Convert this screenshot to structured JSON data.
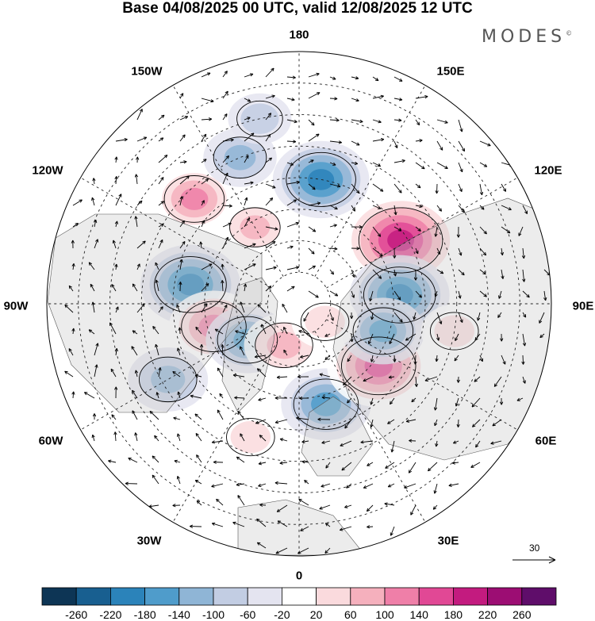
{
  "title": "Base 04/08/2025 00 UTC, valid 12/08/2025 12 UTC",
  "brand": "MODES",
  "brand_mark": "©",
  "longitude_labels": {
    "lon_180": "180",
    "lon_150e": "150E",
    "lon_120e": "120E",
    "lon_90e": "90E",
    "lon_60e": "60E",
    "lon_30e": "30E",
    "lon_0": "0",
    "lon_30w": "30W",
    "lon_60w": "60W",
    "lon_90w": "90W",
    "lon_120w": "120W",
    "lon_150w": "150W"
  },
  "reference_vector": "30",
  "colorbar": {
    "colors": [
      "#0d3555",
      "#185f90",
      "#2b83ba",
      "#4f9ccb",
      "#8fb5d6",
      "#c2cde3",
      "#e4e4f0",
      "#ffffff",
      "#fadadd",
      "#f5b0bd",
      "#ef7fa8",
      "#e14895",
      "#c31b7f",
      "#9c0d73",
      "#5f0d6a"
    ],
    "labels": [
      "-260",
      "-220",
      "-180",
      "-140",
      "-100",
      "-60",
      "-20",
      "20",
      "60",
      "100",
      "140",
      "180",
      "220",
      "260"
    ]
  },
  "anomaly_cells": [
    {
      "name": "high-pacific-north",
      "lon": -135,
      "lat": 43,
      "value": 120
    },
    {
      "name": "high-asia-east",
      "lon": 122,
      "lat": 52,
      "value": 220
    },
    {
      "name": "low-pacific-central",
      "lon": 170,
      "lat": 50,
      "value": -160
    },
    {
      "name": "low-siberia",
      "lon": 95,
      "lat": 58,
      "value": -170
    },
    {
      "name": "low-canada",
      "lon": -100,
      "lat": 55,
      "value": -170
    },
    {
      "name": "high-hudson",
      "lon": -75,
      "lat": 62,
      "value": 140
    },
    {
      "name": "low-labrador",
      "lon": -55,
      "lat": 70,
      "value": -120
    },
    {
      "name": "high-greenland-sea",
      "lon": -20,
      "lat": 76,
      "value": 110
    },
    {
      "name": "low-scandinavia",
      "lon": 15,
      "lat": 57,
      "value": -140
    },
    {
      "name": "high-urals",
      "lon": 52,
      "lat": 58,
      "value": 180
    },
    {
      "name": "low-westsib",
      "lon": 72,
      "lat": 62,
      "value": -120
    },
    {
      "name": "low-atlantic-west",
      "lon": -60,
      "lat": 42,
      "value": -110
    },
    {
      "name": "low-aleutian",
      "lon": -158,
      "lat": 40,
      "value": -90
    },
    {
      "name": "low-npac-w",
      "lon": -168,
      "lat": 30,
      "value": -60
    },
    {
      "name": "high-central-asia",
      "lon": 80,
      "lat": 40,
      "value": 70
    },
    {
      "name": "high-atlantic",
      "lon": -20,
      "lat": 45,
      "value": 70
    },
    {
      "name": "high-kara",
      "lon": 55,
      "lat": 80,
      "value": 70
    },
    {
      "name": "high-alaska",
      "lon": -150,
      "lat": 62,
      "value": 80
    }
  ]
}
